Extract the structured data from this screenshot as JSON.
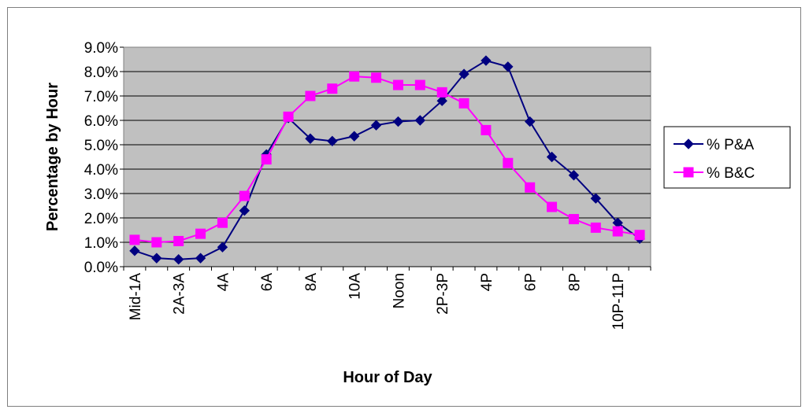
{
  "chart_data": {
    "type": "line",
    "xlabel": "Hour of Day",
    "ylabel": "Percentage by Hour",
    "ylim": [
      0,
      9
    ],
    "yticks": [
      "0.0%",
      "1.0%",
      "2.0%",
      "3.0%",
      "4.0%",
      "5.0%",
      "6.0%",
      "7.0%",
      "8.0%",
      "9.0%"
    ],
    "categories": [
      "Mid-1A",
      "",
      "2A-3A",
      "",
      "4A",
      "",
      "6A",
      "",
      "8A",
      "",
      "10A",
      "",
      "Noon",
      "",
      "2P-3P",
      "",
      "4P",
      "",
      "6P",
      "",
      "8P",
      "",
      "10P-11P",
      ""
    ],
    "grid": "horizontal",
    "legend_position": "right",
    "series": [
      {
        "name": "% P&A",
        "color": "#000080",
        "marker": "diamond",
        "values": [
          0.65,
          0.35,
          0.3,
          0.35,
          0.8,
          2.3,
          4.6,
          6.1,
          5.25,
          5.15,
          5.35,
          5.8,
          5.95,
          6.0,
          6.8,
          7.9,
          8.45,
          8.2,
          5.95,
          4.5,
          3.75,
          2.8,
          1.8,
          1.15
        ]
      },
      {
        "name": "% B&C",
        "color": "#ff00ff",
        "marker": "square",
        "values": [
          1.1,
          1.0,
          1.05,
          1.35,
          1.8,
          2.9,
          4.4,
          6.15,
          7.0,
          7.3,
          7.8,
          7.75,
          7.45,
          7.45,
          7.15,
          6.7,
          5.6,
          4.25,
          3.25,
          2.45,
          1.95,
          1.6,
          1.45,
          1.3
        ]
      }
    ]
  }
}
